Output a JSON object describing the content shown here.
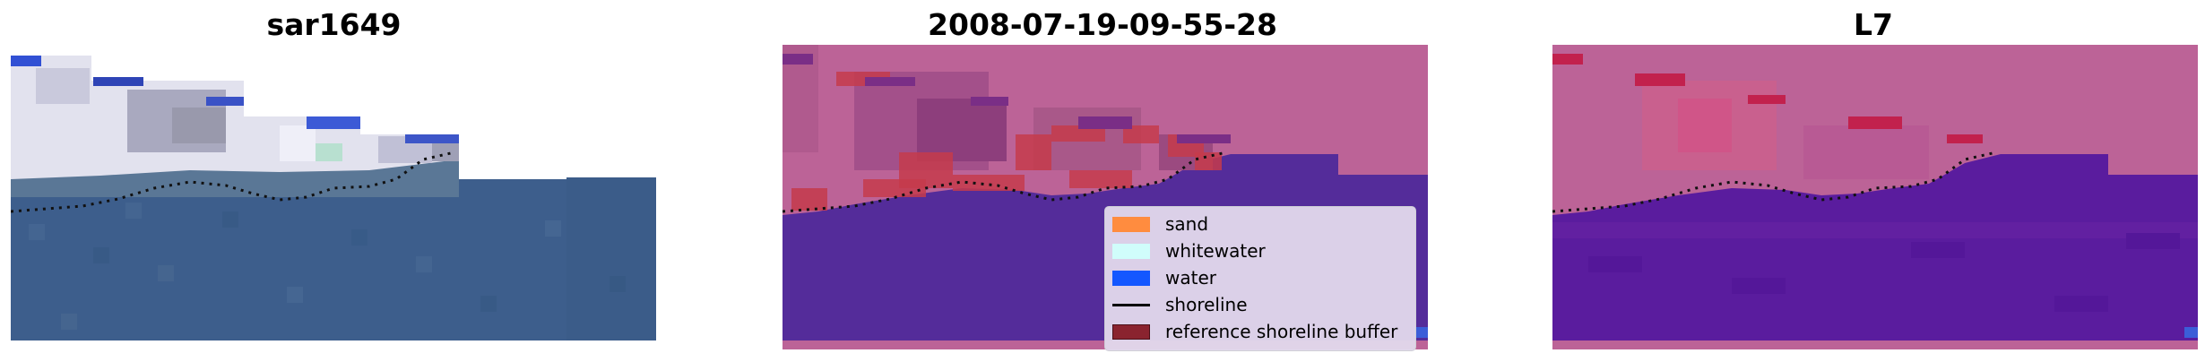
{
  "panels": [
    {
      "title": "sar1649",
      "kind": "rgb"
    },
    {
      "title": "2008-07-19-09-55-28",
      "kind": "classified"
    },
    {
      "title": "L7",
      "kind": "ndwi"
    }
  ],
  "legend": {
    "items": [
      {
        "label": "sand",
        "color": "#ff8c3f",
        "type": "patch"
      },
      {
        "label": "whitewater",
        "color": "#d0fdfb",
        "type": "patch"
      },
      {
        "label": "water",
        "color": "#1457ff",
        "type": "patch"
      },
      {
        "label": "shoreline",
        "color": "#000000",
        "type": "line"
      },
      {
        "label": "reference shoreline buffer",
        "color": "#8a232f",
        "type": "patch"
      }
    ]
  },
  "colors": {
    "ocean_rgb": "#3d5e8c",
    "water_class": "#542c9a",
    "nodata_mask": "#bc6397",
    "water_index": "#5a1c9e"
  }
}
